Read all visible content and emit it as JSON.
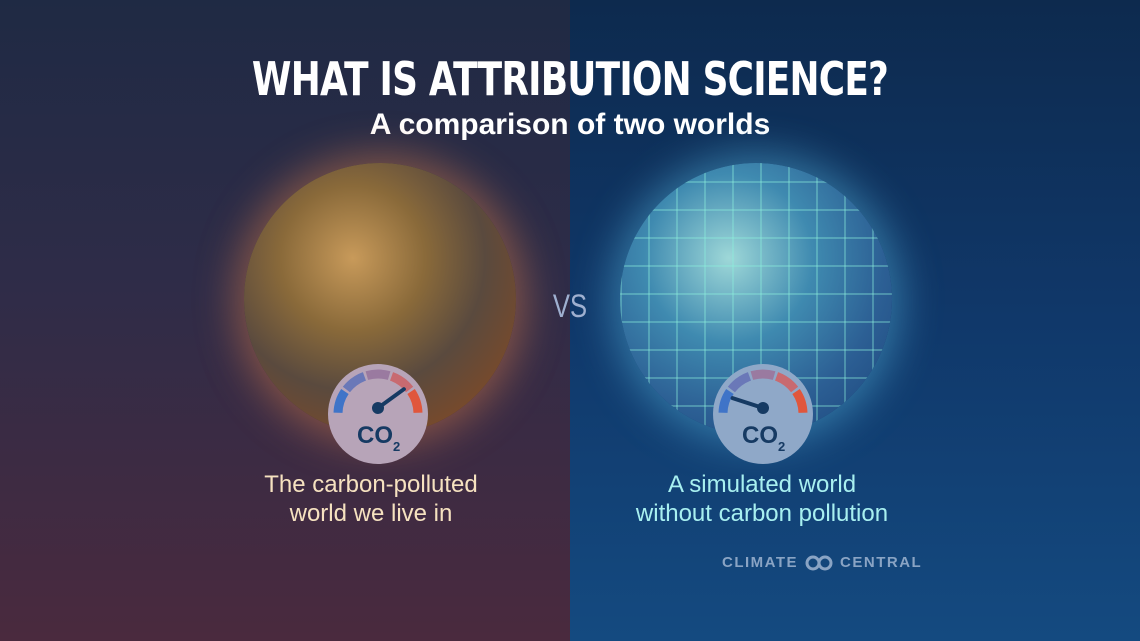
{
  "title": "WHAT IS ATTRIBUTION SCIENCE?",
  "subtitle": "A comparison of two worlds",
  "vs_label": "VS",
  "left_panel": {
    "caption_line1": "The carbon-polluted",
    "caption_line2": "world we live in",
    "gauge": {
      "label": "CO",
      "subscript": "2",
      "level": 0.8
    },
    "colors": {
      "background": "#3a2b46",
      "caption": "#f6e2c0"
    }
  },
  "right_panel": {
    "caption_line1": "A simulated world",
    "caption_line2": "without carbon pollution",
    "gauge": {
      "label": "CO",
      "subscript": "2",
      "level": 0.1
    },
    "colors": {
      "background": "#10386a",
      "caption": "#a8f0f0"
    }
  },
  "logo": {
    "left_text": "CLIMATE",
    "right_text": "CENTRAL",
    "icon": "linked-circles-icon"
  }
}
